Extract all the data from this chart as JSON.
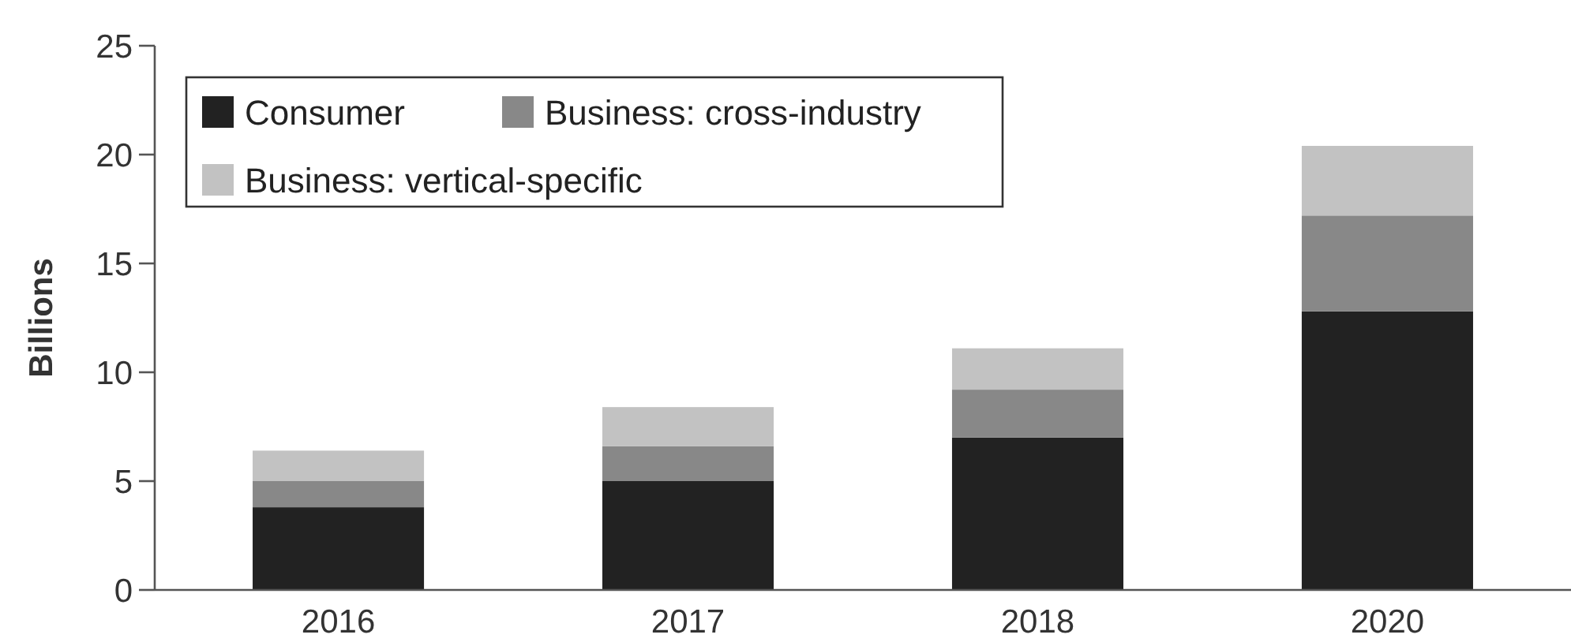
{
  "chart_data": {
    "type": "bar",
    "stacked": true,
    "ylabel": "Billions",
    "categories": [
      "2016",
      "2017",
      "2018",
      "2020"
    ],
    "series": [
      {
        "name": "Consumer",
        "color": "#222222",
        "values": [
          3.8,
          5.0,
          7.0,
          12.8
        ]
      },
      {
        "name": "Business: cross-industry",
        "color": "#888888",
        "values": [
          1.2,
          1.6,
          2.2,
          4.4
        ]
      },
      {
        "name": "Business: vertical-specific",
        "color": "#c2c2c2",
        "values": [
          1.4,
          1.8,
          1.9,
          3.2
        ]
      }
    ],
    "ylim": [
      0,
      25
    ],
    "yticks": [
      0,
      5,
      10,
      15,
      20,
      25
    ],
    "grid": false,
    "legend": "top left"
  }
}
